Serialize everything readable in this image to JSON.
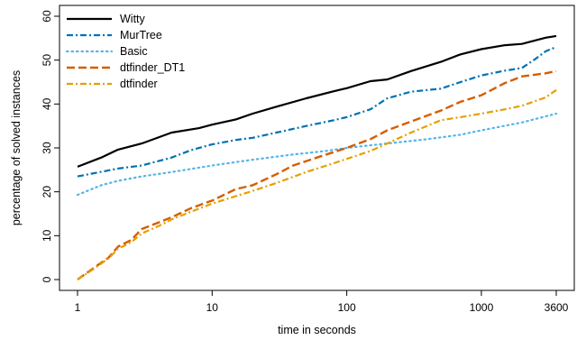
{
  "chart_data": {
    "type": "line",
    "title": "",
    "xlabel": "time in seconds",
    "ylabel": "percentage of solved instances",
    "x_scale": "log",
    "xlim": [
      1,
      3600
    ],
    "ylim": [
      0,
      60
    ],
    "x_ticks": [
      1,
      10,
      100,
      1000,
      3600
    ],
    "x_tick_labels": [
      "1",
      "10",
      "100",
      "1000",
      "3600"
    ],
    "y_ticks": [
      0,
      10,
      20,
      30,
      40,
      50,
      60
    ],
    "y_tick_labels": [
      "0",
      "10",
      "20",
      "30",
      "40",
      "50",
      "60"
    ],
    "grid": false,
    "legend_position": "top-left",
    "series": [
      {
        "name": "Witty",
        "color": "#000000",
        "dash": "solid",
        "points": [
          [
            1,
            25.7
          ],
          [
            1.5,
            27.8
          ],
          [
            2,
            29.6
          ],
          [
            3,
            31
          ],
          [
            5,
            33.5
          ],
          [
            8,
            34.5
          ],
          [
            10,
            35.3
          ],
          [
            15,
            36.5
          ],
          [
            20,
            37.8
          ],
          [
            30,
            39.4
          ],
          [
            50,
            41.3
          ],
          [
            80,
            42.9
          ],
          [
            100,
            43.6
          ],
          [
            150,
            45.2
          ],
          [
            200,
            45.6
          ],
          [
            300,
            47.5
          ],
          [
            500,
            49.6
          ],
          [
            700,
            51.3
          ],
          [
            1000,
            52.5
          ],
          [
            1500,
            53.4
          ],
          [
            2000,
            53.7
          ],
          [
            3000,
            55.1
          ],
          [
            3600,
            55.5
          ]
        ]
      },
      {
        "name": "MurTree",
        "color": "#0072b2",
        "dash": "dashdot",
        "points": [
          [
            1,
            23.5
          ],
          [
            2,
            25.3
          ],
          [
            3,
            26
          ],
          [
            5,
            27.8
          ],
          [
            7,
            29.5
          ],
          [
            10,
            30.8
          ],
          [
            15,
            31.8
          ],
          [
            20,
            32.3
          ],
          [
            30,
            33.5
          ],
          [
            50,
            35
          ],
          [
            80,
            36.3
          ],
          [
            100,
            37
          ],
          [
            150,
            38.8
          ],
          [
            200,
            41.3
          ],
          [
            300,
            42.8
          ],
          [
            500,
            43.5
          ],
          [
            700,
            45
          ],
          [
            1000,
            46.5
          ],
          [
            1500,
            47.6
          ],
          [
            2000,
            48.2
          ],
          [
            2500,
            50.2
          ],
          [
            3000,
            52
          ],
          [
            3600,
            53
          ]
        ]
      },
      {
        "name": "Basic",
        "color": "#56b4e9",
        "dash": "dotted",
        "points": [
          [
            1,
            19.3
          ],
          [
            1.5,
            21.5
          ],
          [
            2,
            22.5
          ],
          [
            3,
            23.5
          ],
          [
            5,
            24.5
          ],
          [
            10,
            26
          ],
          [
            20,
            27.3
          ],
          [
            40,
            28.5
          ],
          [
            70,
            29.3
          ],
          [
            100,
            30
          ],
          [
            200,
            31
          ],
          [
            400,
            32
          ],
          [
            700,
            33
          ],
          [
            1000,
            34
          ],
          [
            2000,
            35.8
          ],
          [
            3000,
            37.2
          ],
          [
            3600,
            37.8
          ]
        ]
      },
      {
        "name": "dtfinder_DT1",
        "color": "#d55e00",
        "dash": "dashed",
        "points": [
          [
            1,
            0
          ],
          [
            1.3,
            2.5
          ],
          [
            1.7,
            5
          ],
          [
            2,
            7.5
          ],
          [
            2.5,
            9
          ],
          [
            3,
            11.5
          ],
          [
            4,
            13
          ],
          [
            5,
            14.2
          ],
          [
            7,
            16.3
          ],
          [
            10,
            18
          ],
          [
            15,
            20.6
          ],
          [
            20,
            21.5
          ],
          [
            30,
            24
          ],
          [
            40,
            26
          ],
          [
            60,
            27.8
          ],
          [
            100,
            30
          ],
          [
            150,
            32
          ],
          [
            200,
            34
          ],
          [
            300,
            36
          ],
          [
            500,
            38.5
          ],
          [
            700,
            40.5
          ],
          [
            1000,
            42
          ],
          [
            1500,
            44.8
          ],
          [
            2000,
            46.3
          ],
          [
            3000,
            47
          ],
          [
            3600,
            47.5
          ]
        ]
      },
      {
        "name": "dtfinder",
        "color": "#e69f00",
        "dash": "dashdot",
        "points": [
          [
            1,
            0
          ],
          [
            1.3,
            2.3
          ],
          [
            1.7,
            4.8
          ],
          [
            2,
            7
          ],
          [
            2.5,
            8.5
          ],
          [
            3,
            10.5
          ],
          [
            4,
            12.2
          ],
          [
            5,
            13.7
          ],
          [
            7,
            15.5
          ],
          [
            10,
            17.3
          ],
          [
            15,
            19
          ],
          [
            20,
            20.2
          ],
          [
            30,
            22
          ],
          [
            50,
            24.5
          ],
          [
            80,
            26.5
          ],
          [
            100,
            27.5
          ],
          [
            150,
            29.3
          ],
          [
            200,
            31
          ],
          [
            300,
            33.5
          ],
          [
            500,
            36.3
          ],
          [
            700,
            37
          ],
          [
            1000,
            37.8
          ],
          [
            1500,
            38.8
          ],
          [
            2000,
            39.6
          ],
          [
            3000,
            41.5
          ],
          [
            3600,
            43.2
          ]
        ]
      }
    ]
  }
}
